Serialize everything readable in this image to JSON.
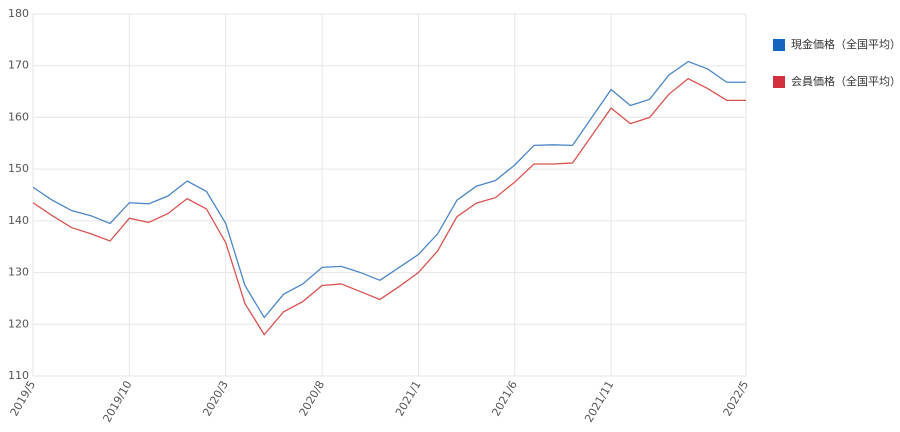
{
  "chart_data": {
    "type": "line",
    "categories": [
      "2019/5",
      null,
      null,
      null,
      null,
      "2019/10",
      null,
      null,
      null,
      null,
      "2020/3",
      null,
      null,
      null,
      null,
      "2020/8",
      null,
      null,
      null,
      null,
      "2021/1",
      null,
      null,
      null,
      null,
      "2021/6",
      null,
      null,
      null,
      null,
      "2021/11",
      null,
      null,
      null,
      null,
      null,
      null,
      "2022/5"
    ],
    "series": [
      {
        "name": "現金価格（全国平均）",
        "color": "#4a86c8",
        "legend_color": "#1565c0",
        "values": [
          146.5,
          144,
          142,
          141,
          139.5,
          143.5,
          143.3,
          144.8,
          147.7,
          145.7,
          139.5,
          127.5,
          121.3,
          125.8,
          127.8,
          131,
          131.2,
          130,
          128.5,
          131,
          133.5,
          137.5,
          144,
          146.7,
          147.8,
          150.8,
          154.6,
          154.7,
          154.6,
          160,
          165.4,
          162.3,
          163.5,
          168.2,
          170.8,
          169.4,
          166.8,
          166.8
        ]
      },
      {
        "name": "会員価格（全国平均）",
        "color": "#d9534f",
        "legend_color": "#d32f3f",
        "values": [
          143.5,
          141,
          138.7,
          137.5,
          136.1,
          140.5,
          139.7,
          141.4,
          144.3,
          142.3,
          135.8,
          124,
          118,
          122.4,
          124.4,
          127.5,
          127.8,
          126.3,
          124.8,
          127.3,
          130,
          134.2,
          140.8,
          143.4,
          144.5,
          147.5,
          151,
          151,
          151.2,
          156.5,
          161.8,
          158.8,
          160,
          164.5,
          167.5,
          165.6,
          163.3,
          163.3
        ]
      }
    ],
    "ylim": [
      110,
      180
    ],
    "yticks": [
      110,
      120,
      130,
      140,
      150,
      160,
      170,
      180
    ],
    "grid": true
  }
}
